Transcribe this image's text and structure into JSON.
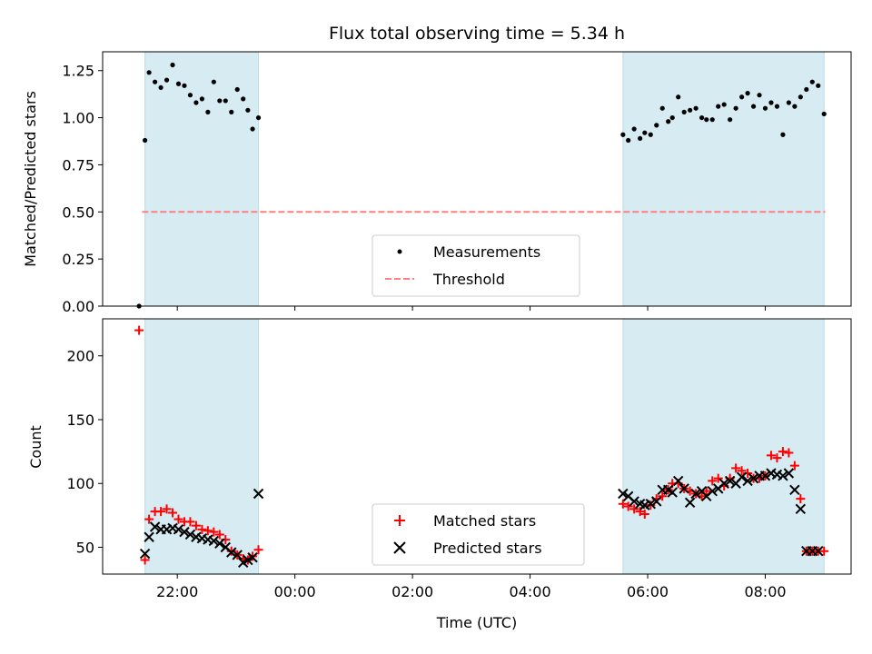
{
  "chart_data": {
    "title": "Flux total observing time = 5.34 h",
    "xlabel": "Time (UTC)",
    "x_ticks": [
      "22:00",
      "00:00",
      "02:00",
      "04:00",
      "06:00",
      "08:00"
    ],
    "x_tick_hours": [
      22,
      24,
      26,
      28,
      30,
      32
    ],
    "xlim": [
      20.73,
      33.46
    ],
    "observing_windows": [
      [
        21.45,
        23.38
      ],
      [
        29.58,
        33.0
      ]
    ],
    "band_color": "#add8e6",
    "top": {
      "type": "scatter",
      "ylabel": "Matched/Predicted stars",
      "ylim": [
        0.0,
        1.35
      ],
      "yticks": [
        "0.00",
        "0.25",
        "0.50",
        "0.75",
        "1.00",
        "1.25"
      ],
      "ytick_values": [
        0.0,
        0.25,
        0.5,
        0.75,
        1.0,
        1.25
      ],
      "threshold": 0.5,
      "legend_position": "lower-center",
      "series": [
        {
          "name": "Measurements",
          "color": "#000000",
          "marker": "dot",
          "x": [
            21.35,
            21.45,
            21.52,
            21.62,
            21.72,
            21.82,
            21.92,
            22.02,
            22.12,
            22.22,
            22.32,
            22.42,
            22.52,
            22.62,
            22.72,
            22.82,
            22.92,
            23.02,
            23.12,
            23.2,
            23.28,
            23.38,
            29.58,
            29.67,
            29.77,
            29.87,
            29.95,
            30.05,
            30.15,
            30.25,
            30.35,
            30.42,
            30.52,
            30.62,
            30.72,
            30.82,
            30.92,
            31.0,
            31.1,
            31.2,
            31.3,
            31.4,
            31.5,
            31.6,
            31.7,
            31.8,
            31.9,
            32.0,
            32.1,
            32.2,
            32.3,
            32.4,
            32.5,
            32.6,
            32.7,
            32.8,
            32.9,
            33.0
          ],
          "y": [
            0.0,
            0.88,
            1.24,
            1.19,
            1.16,
            1.2,
            1.28,
            1.18,
            1.17,
            1.12,
            1.08,
            1.1,
            1.03,
            1.19,
            1.09,
            1.09,
            1.03,
            1.15,
            1.1,
            1.04,
            0.94,
            1.0,
            0.91,
            0.88,
            0.94,
            0.89,
            0.92,
            0.91,
            0.96,
            1.05,
            0.98,
            1.0,
            1.11,
            1.03,
            1.04,
            1.05,
            1.0,
            0.99,
            0.99,
            1.06,
            1.07,
            0.99,
            1.05,
            1.11,
            1.13,
            1.06,
            1.12,
            1.05,
            1.08,
            1.06,
            0.91,
            1.08,
            1.06,
            1.11,
            1.15,
            1.19,
            1.17,
            1.02
          ]
        },
        {
          "name": "Threshold",
          "color": "#ff7f7f",
          "marker": "dashed-line"
        }
      ]
    },
    "bottom": {
      "type": "scatter",
      "ylabel": "Count",
      "ylim": [
        29,
        229
      ],
      "yticks": [
        "50",
        "100",
        "150",
        "200"
      ],
      "ytick_values": [
        50,
        100,
        150,
        200
      ],
      "legend_position": "lower-center",
      "series": [
        {
          "name": "Matched stars",
          "color": "#ff0000",
          "marker": "plus",
          "x": [
            21.35,
            21.45,
            21.52,
            21.62,
            21.72,
            21.82,
            21.92,
            22.02,
            22.12,
            22.22,
            22.32,
            22.42,
            22.52,
            22.62,
            22.72,
            22.82,
            22.92,
            23.02,
            23.12,
            23.2,
            23.28,
            23.38,
            29.58,
            29.67,
            29.77,
            29.87,
            29.95,
            30.05,
            30.15,
            30.25,
            30.35,
            30.42,
            30.52,
            30.62,
            30.72,
            30.82,
            30.92,
            31.0,
            31.1,
            31.2,
            31.3,
            31.4,
            31.5,
            31.6,
            31.7,
            31.8,
            31.9,
            32.0,
            32.1,
            32.2,
            32.3,
            32.4,
            32.5,
            32.6,
            32.7,
            32.8,
            32.9,
            33.0
          ],
          "y": [
            220,
            40,
            72,
            78,
            78,
            80,
            77,
            72,
            70,
            70,
            67,
            64,
            63,
            62,
            60,
            56,
            47,
            44,
            41,
            40,
            43,
            48,
            84,
            82,
            80,
            78,
            76,
            83,
            88,
            90,
            95,
            100,
            100,
            96,
            94,
            92,
            90,
            94,
            102,
            104,
            98,
            104,
            112,
            110,
            108,
            104,
            104,
            106,
            122,
            120,
            125,
            124,
            114,
            88,
            47,
            47,
            47,
            47
          ]
        },
        {
          "name": "Predicted stars",
          "color": "#000000",
          "marker": "x",
          "x": [
            21.45,
            21.52,
            21.62,
            21.72,
            21.82,
            21.92,
            22.02,
            22.12,
            22.22,
            22.32,
            22.42,
            22.52,
            22.62,
            22.72,
            22.82,
            22.92,
            23.02,
            23.12,
            23.2,
            23.28,
            23.38,
            29.58,
            29.67,
            29.77,
            29.87,
            29.95,
            30.05,
            30.15,
            30.25,
            30.35,
            30.42,
            30.52,
            30.62,
            30.72,
            30.82,
            30.92,
            31.0,
            31.1,
            31.2,
            31.3,
            31.4,
            31.5,
            31.6,
            31.7,
            31.8,
            31.9,
            32.0,
            32.1,
            32.2,
            32.3,
            32.4,
            32.5,
            32.6,
            32.7,
            32.8,
            32.9
          ],
          "y": [
            45,
            58,
            66,
            64,
            64,
            65,
            64,
            62,
            60,
            58,
            57,
            56,
            55,
            53,
            50,
            46,
            44,
            38,
            40,
            42,
            92,
            92,
            90,
            86,
            84,
            83,
            84,
            86,
            95,
            95,
            93,
            102,
            96,
            85,
            92,
            94,
            90,
            94,
            96,
            100,
            102,
            100,
            105,
            102,
            104,
            106,
            106,
            108,
            107,
            106,
            108,
            95,
            80,
            47,
            47,
            47
          ]
        }
      ]
    }
  }
}
